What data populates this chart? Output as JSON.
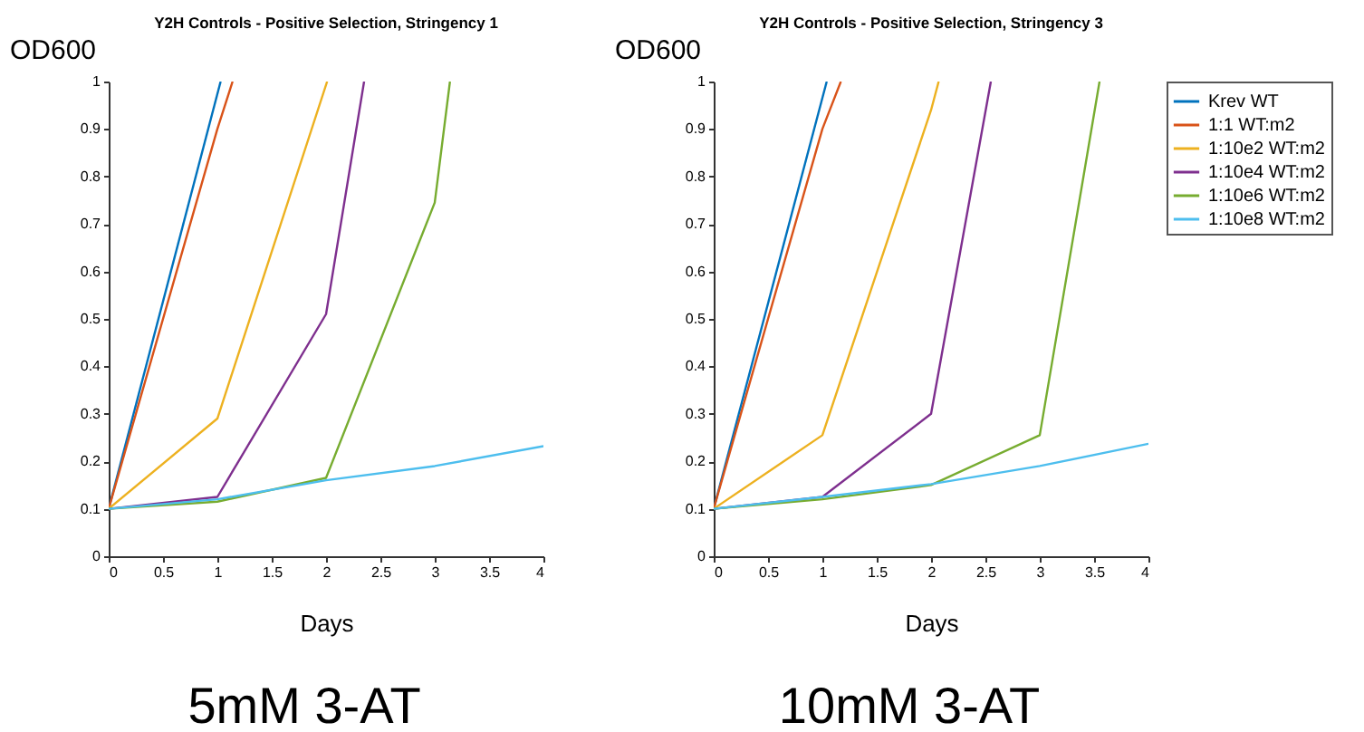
{
  "chart_data": [
    {
      "type": "line",
      "title": "Y2H Controls - Positive Selection, Stringency 1",
      "xlabel": "Days",
      "ylabel": "OD600",
      "annotations": [
        "5mM 3-AT"
      ],
      "xlim": [
        0,
        4
      ],
      "xticks": [
        0,
        0.5,
        1,
        1.5,
        2,
        2.5,
        3,
        3.5,
        4
      ],
      "ylim": [
        0,
        1
      ],
      "yticks": [
        0,
        0.1,
        0.2,
        0.3,
        0.4,
        0.5,
        0.6,
        0.7,
        0.8,
        0.9,
        1
      ],
      "grid": false,
      "legend": false,
      "line_style": "solid",
      "series": [
        {
          "color": "#0072bd",
          "x": [
            0,
            1.03
          ],
          "values": [
            0.1,
            1
          ]
        },
        {
          "color": "#d95319",
          "x": [
            0,
            1,
            1.14
          ],
          "values": [
            0.1,
            0.9,
            1
          ]
        },
        {
          "color": "#edb120",
          "x": [
            0,
            1,
            2.01
          ],
          "values": [
            0.1,
            0.29,
            1
          ]
        },
        {
          "color": "#7e2f8e",
          "x": [
            0,
            1,
            2,
            2.35
          ],
          "values": [
            0.1,
            0.125,
            0.51,
            1
          ]
        },
        {
          "color": "#77ac30",
          "x": [
            0,
            1,
            2,
            3,
            3.14
          ],
          "values": [
            0.1,
            0.115,
            0.165,
            0.745,
            1
          ]
        },
        {
          "color": "#4dbeee",
          "x": [
            0,
            1,
            2,
            3,
            4
          ],
          "values": [
            0.1,
            0.12,
            0.16,
            0.19,
            0.232
          ]
        }
      ]
    },
    {
      "type": "line",
      "title": "Y2H Controls - Positive Selection, Stringency 3",
      "xlabel": "Days",
      "ylabel": "OD600",
      "annotations": [
        "10mM 3-AT"
      ],
      "xlim": [
        0,
        4
      ],
      "xticks": [
        0,
        0.5,
        1,
        1.5,
        2,
        2.5,
        3,
        3.5,
        4
      ],
      "ylim": [
        0,
        1
      ],
      "yticks": [
        0,
        0.1,
        0.2,
        0.3,
        0.4,
        0.5,
        0.6,
        0.7,
        0.8,
        0.9,
        1
      ],
      "grid": false,
      "legend": "top right",
      "line_style": "solid",
      "series": [
        {
          "name": "Krev WT",
          "color": "#0072bd",
          "x": [
            0,
            1.04
          ],
          "values": [
            0.1,
            1
          ]
        },
        {
          "name": "1:1 WT:m2",
          "color": "#d95319",
          "x": [
            0,
            1,
            1.17
          ],
          "values": [
            0.1,
            0.9,
            1
          ]
        },
        {
          "name": "1:10e2 WT:m2",
          "color": "#edb120",
          "x": [
            0,
            1,
            2,
            2.07
          ],
          "values": [
            0.1,
            0.255,
            0.94,
            1
          ]
        },
        {
          "name": "1:10e4 WT:m2",
          "color": "#7e2f8e",
          "x": [
            0,
            1,
            2,
            2.55
          ],
          "values": [
            0.1,
            0.125,
            0.3,
            1
          ]
        },
        {
          "name": "1:10e6 WT:m2",
          "color": "#77ac30",
          "x": [
            0,
            1,
            2,
            3,
            3.55
          ],
          "values": [
            0.1,
            0.12,
            0.15,
            0.255,
            1
          ]
        },
        {
          "name": "1:10e8 WT:m2",
          "color": "#4dbeee",
          "x": [
            0,
            1,
            2,
            3,
            4
          ],
          "values": [
            0.1,
            0.125,
            0.152,
            0.19,
            0.237
          ]
        }
      ]
    }
  ]
}
